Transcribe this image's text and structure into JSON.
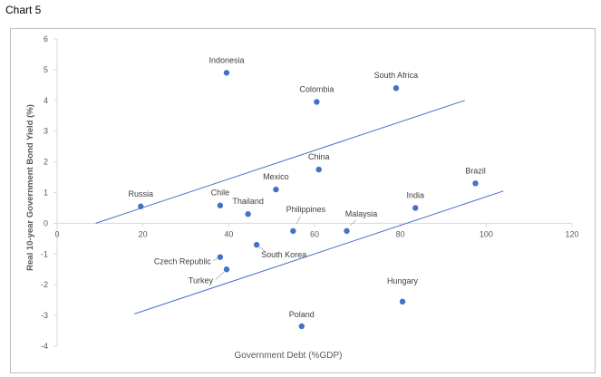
{
  "page_title": "Chart 5",
  "chart_data": {
    "type": "scatter",
    "xlabel": "Government Debt (%GDP)",
    "ylabel": "Real 10-year Government Bond Yield (%)",
    "xlim": [
      0,
      120
    ],
    "ylim": [
      -4,
      6
    ],
    "xticks": [
      0,
      20,
      40,
      60,
      80,
      100,
      120
    ],
    "yticks": [
      6,
      5,
      4,
      3,
      2,
      1,
      0,
      -1,
      -2,
      -3,
      -4
    ],
    "grid": false,
    "legend": "none",
    "points": [
      {
        "label": "Indonesia",
        "x": 39.5,
        "y": 4.9
      },
      {
        "label": "South Africa",
        "x": 79,
        "y": 4.4
      },
      {
        "label": "Colombia",
        "x": 60.5,
        "y": 3.95
      },
      {
        "label": "China",
        "x": 61,
        "y": 1.75
      },
      {
        "label": "Brazil",
        "x": 97.5,
        "y": 1.3
      },
      {
        "label": "Mexico",
        "x": 51,
        "y": 1.1
      },
      {
        "label": "Russia",
        "x": 19.5,
        "y": 0.55
      },
      {
        "label": "Chile",
        "x": 38,
        "y": 0.58
      },
      {
        "label": "Thailand",
        "x": 44.5,
        "y": 0.3
      },
      {
        "label": "India",
        "x": 83.5,
        "y": 0.5
      },
      {
        "label": "Philippines",
        "x": 55,
        "y": -0.25
      },
      {
        "label": "Malaysia",
        "x": 67.5,
        "y": -0.25
      },
      {
        "label": "South Korea",
        "x": 46.5,
        "y": -0.7
      },
      {
        "label": "Czech Republic",
        "x": 38,
        "y": -1.1
      },
      {
        "label": "Turkey",
        "x": 39.5,
        "y": -1.5
      },
      {
        "label": "Hungary",
        "x": 80.5,
        "y": -2.55
      },
      {
        "label": "Poland",
        "x": 57,
        "y": -3.35
      }
    ],
    "lines": [
      {
        "x": [
          9,
          95
        ],
        "y": [
          0,
          4
        ]
      },
      {
        "x": [
          18,
          104
        ],
        "y": [
          -2.95,
          1.05
        ]
      }
    ],
    "colors": {
      "marker": "#4472c4",
      "line": "#4472c4",
      "axis": "#d9d9d9",
      "text": "#404040"
    }
  }
}
